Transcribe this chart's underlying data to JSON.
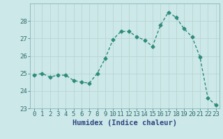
{
  "xlabel": "Humidex (Indice chaleur)",
  "x": [
    0,
    1,
    2,
    3,
    4,
    5,
    6,
    7,
    8,
    9,
    10,
    11,
    12,
    13,
    14,
    15,
    16,
    17,
    18,
    19,
    20,
    21,
    22,
    23
  ],
  "y": [
    24.9,
    25.0,
    24.8,
    24.9,
    24.9,
    24.6,
    24.5,
    24.45,
    25.0,
    25.85,
    26.95,
    27.4,
    27.4,
    27.1,
    26.9,
    26.55,
    27.75,
    28.5,
    28.2,
    27.55,
    27.1,
    25.95,
    23.6,
    23.2
  ],
  "line_color": "#2e8b7a",
  "marker": "D",
  "markersize": 2.5,
  "linewidth": 1.0,
  "bg_color": "#cce8e8",
  "grid_color": "#b8d0d0",
  "ylim": [
    23,
    29
  ],
  "xlim": [
    -0.5,
    23.5
  ],
  "yticks": [
    23,
    24,
    25,
    26,
    27,
    28
  ],
  "xticks": [
    0,
    1,
    2,
    3,
    4,
    5,
    6,
    7,
    8,
    9,
    10,
    11,
    12,
    13,
    14,
    15,
    16,
    17,
    18,
    19,
    20,
    21,
    22,
    23
  ],
  "xlabel_fontsize": 7.5,
  "tick_fontsize": 6.5,
  "xlabel_color": "#2e4480",
  "tick_color": "#2e6b6b"
}
